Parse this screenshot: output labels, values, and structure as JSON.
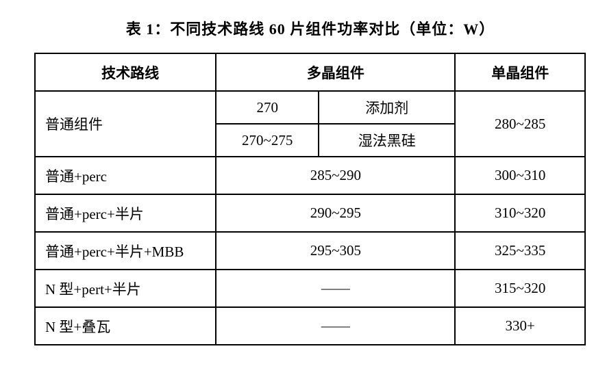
{
  "title": "表 1：不同技术路线 60 片组件功率对比（单位：W）",
  "headers": {
    "tech": "技术路线",
    "poly": "多晶组件",
    "mono": "单晶组件"
  },
  "row1": {
    "tech": "普通组件",
    "poly_val1": "270",
    "poly_label1": "添加剂",
    "poly_val2": "270~275",
    "poly_label2": "湿法黑硅",
    "mono": "280~285"
  },
  "rows": [
    {
      "tech": "普通+perc",
      "poly": "285~290",
      "mono": "300~310"
    },
    {
      "tech": "普通+perc+半片",
      "poly": "290~295",
      "mono": "310~320"
    },
    {
      "tech": "普通+perc+半片+MBB",
      "poly": "295~305",
      "mono": "325~335"
    },
    {
      "tech": "N 型+pert+半片",
      "poly": "——",
      "mono": "315~320"
    },
    {
      "tech": "N 型+叠瓦",
      "poly": "——",
      "mono": "330+"
    }
  ]
}
